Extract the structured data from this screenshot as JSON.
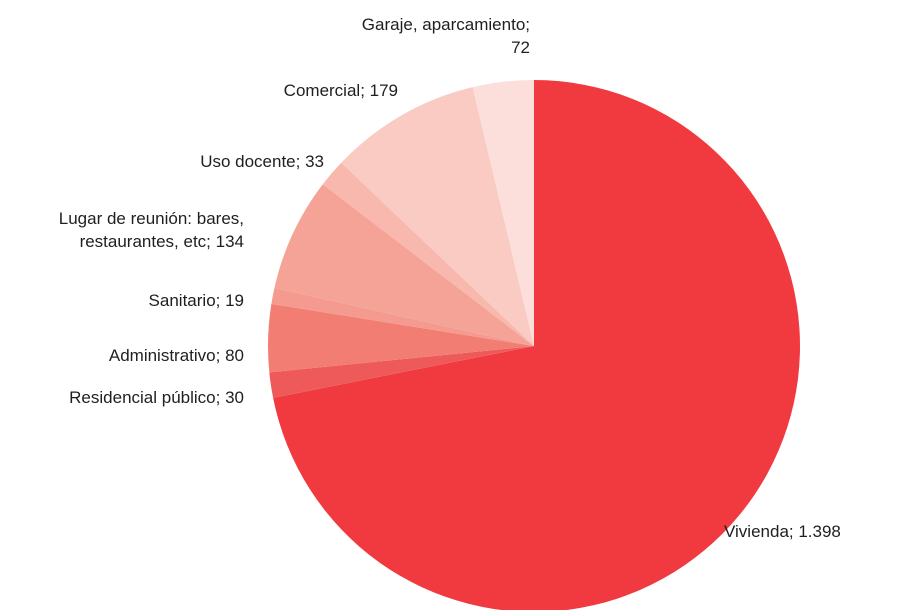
{
  "chart_data": {
    "type": "pie",
    "title": "",
    "start_angle_deg": 0,
    "direction": "clockwise",
    "slices": [
      {
        "label": [
          "Vivienda; 1.398"
        ],
        "value": 1398,
        "color": "#f13a3f"
      },
      {
        "label": [
          "Residencial público; 30"
        ],
        "value": 30,
        "color": "#ee5a5a"
      },
      {
        "label": [
          "Administrativo; 80"
        ],
        "value": 80,
        "color": "#f27d73"
      },
      {
        "label": [
          "Sanitario; 19"
        ],
        "value": 19,
        "color": "#f59a8e"
      },
      {
        "label": [
          "Lugar de reunión: bares,",
          "restaurantes, etc; 134"
        ],
        "value": 134,
        "color": "#f5a396"
      },
      {
        "label": [
          "Uso docente; 33"
        ],
        "value": 33,
        "color": "#f8b8ae"
      },
      {
        "label": [
          "Comercial; 179"
        ],
        "value": 179,
        "color": "#f9cbc3"
      },
      {
        "label": [
          "Garaje, aparcamiento;",
          "72"
        ],
        "value": 72,
        "color": "#fcdfda"
      }
    ]
  }
}
